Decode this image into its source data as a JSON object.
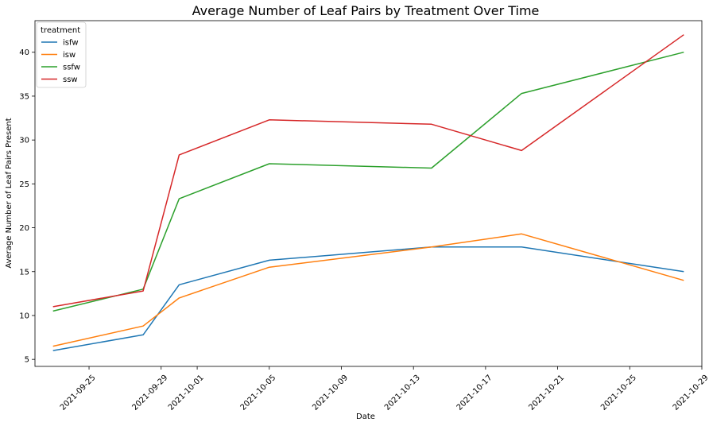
{
  "chart_data": {
    "type": "line",
    "title": "Average Number of Leaf Pairs by Treatment Over Time",
    "xlabel": "Date",
    "ylabel": "Average Number of Leaf Pairs Present",
    "x": [
      "2021-09-23",
      "2021-09-28",
      "2021-09-30",
      "2021-10-05",
      "2021-10-14",
      "2021-10-19",
      "2021-10-28"
    ],
    "xlim": [
      "2021-09-22",
      "2021-10-29"
    ],
    "ylim": [
      4.2,
      43.6
    ],
    "x_ticks": [
      "2021-09-25",
      "2021-09-29",
      "2021-10-01",
      "2021-10-05",
      "2021-10-09",
      "2021-10-13",
      "2021-10-17",
      "2021-10-21",
      "2021-10-25",
      "2021-10-29"
    ],
    "y_ticks": [
      5,
      10,
      15,
      20,
      25,
      30,
      35,
      40
    ],
    "grid": false,
    "legend": {
      "title": "treatment",
      "placement": "top-left"
    },
    "series": [
      {
        "name": "isfw",
        "color": "#1f77b4",
        "values": [
          6.0,
          7.8,
          13.5,
          16.3,
          17.8,
          17.8,
          15.0
        ]
      },
      {
        "name": "isw",
        "color": "#ff7f0e",
        "values": [
          6.5,
          8.8,
          12.0,
          15.5,
          17.8,
          19.3,
          14.0
        ]
      },
      {
        "name": "ssfw",
        "color": "#2ca02c",
        "values": [
          10.5,
          13.0,
          23.3,
          27.3,
          26.8,
          35.3,
          40.0
        ]
      },
      {
        "name": "ssw",
        "color": "#d62728",
        "values": [
          11.0,
          12.8,
          28.3,
          32.3,
          31.8,
          28.8,
          42.0
        ]
      }
    ]
  }
}
